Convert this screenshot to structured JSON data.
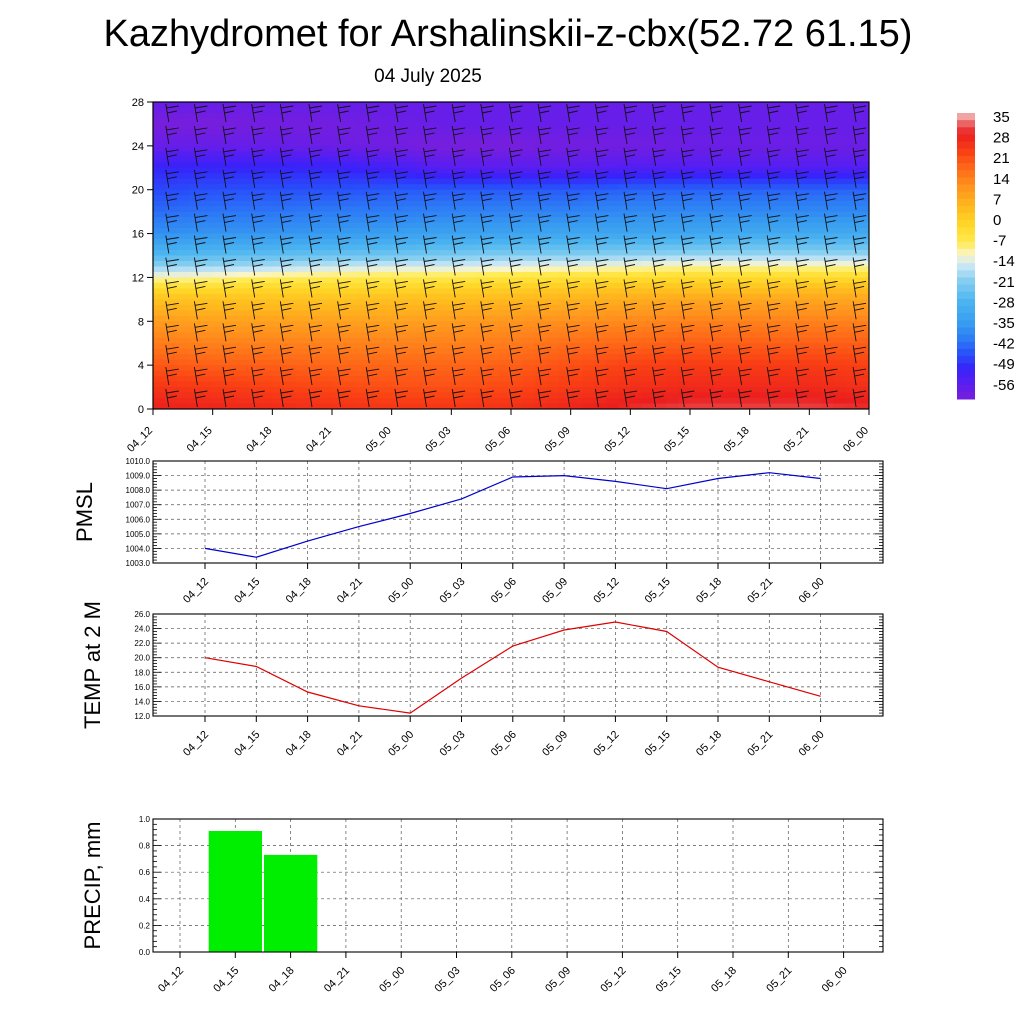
{
  "title": "Kazhydromet for Arshalinskii-z-cbx(52.72 61.15)",
  "subtitle": "04 July 2025",
  "time_labels": [
    "04_12",
    "04_15",
    "04_18",
    "04_21",
    "05_00",
    "05_03",
    "05_06",
    "05_09",
    "05_12",
    "05_15",
    "05_18",
    "05_21",
    "06_00"
  ],
  "colorbar": {
    "labels": [
      "35",
      "28",
      "21",
      "14",
      "7",
      "0",
      "-7",
      "-14",
      "-21",
      "-28",
      "-35",
      "-42",
      "-49",
      "-56"
    ]
  },
  "chart_data": [
    {
      "type": "heatmap",
      "title": "",
      "xlabel": "",
      "ylabel": "",
      "y_ticks": [
        0,
        4,
        8,
        12,
        16,
        20,
        24,
        28
      ],
      "ylim": [
        0,
        28
      ],
      "x": [
        "04_12",
        "04_15",
        "04_18",
        "04_21",
        "05_00",
        "05_03",
        "05_06",
        "05_09",
        "05_12",
        "05_15",
        "05_18",
        "05_21",
        "06_00"
      ],
      "vmin": -60,
      "vmax": 35,
      "levels": [
        {
          "z": 0,
          "values": [
            28,
            27,
            26,
            25,
            24,
            24,
            25,
            27,
            29,
            30,
            30,
            30,
            29
          ]
        },
        {
          "z": 2,
          "values": [
            24,
            23,
            22,
            21,
            20,
            20,
            21,
            23,
            25,
            26,
            26,
            26,
            25
          ]
        },
        {
          "z": 4,
          "values": [
            19,
            18,
            18,
            17,
            17,
            17,
            18,
            20,
            22,
            23,
            23,
            23,
            22
          ]
        },
        {
          "z": 6,
          "values": [
            14,
            13,
            13,
            13,
            13,
            13,
            14,
            16,
            17,
            18,
            18,
            18,
            18
          ]
        },
        {
          "z": 8,
          "values": [
            9,
            8,
            8,
            8,
            8,
            9,
            10,
            11,
            12,
            13,
            13,
            13,
            13
          ]
        },
        {
          "z": 10,
          "values": [
            2,
            2,
            2,
            2,
            3,
            3,
            4,
            5,
            6,
            7,
            7,
            7,
            7
          ]
        },
        {
          "z": 11,
          "values": [
            -3,
            -3,
            -2,
            -2,
            -2,
            -1,
            0,
            1,
            2,
            2,
            2,
            3,
            3
          ]
        },
        {
          "z": 12,
          "values": [
            -12,
            -11,
            -9,
            -8,
            -7,
            -7,
            -6,
            -5,
            -4,
            -3,
            -3,
            -3,
            -3
          ]
        },
        {
          "z": 13,
          "values": [
            -20,
            -19,
            -18,
            -16,
            -15,
            -15,
            -14,
            -13,
            -12,
            -11,
            -11,
            -11,
            -11
          ]
        },
        {
          "z": 14,
          "values": [
            -27,
            -26,
            -25,
            -24,
            -23,
            -22,
            -21,
            -21,
            -20,
            -19,
            -19,
            -19,
            -19
          ]
        },
        {
          "z": 16,
          "values": [
            -37,
            -36,
            -36,
            -35,
            -34,
            -33,
            -33,
            -32,
            -32,
            -32,
            -31,
            -31,
            -31
          ]
        },
        {
          "z": 18,
          "values": [
            -42,
            -41,
            -41,
            -40,
            -40,
            -39,
            -39,
            -39,
            -38,
            -38,
            -38,
            -38,
            -38
          ]
        },
        {
          "z": 20,
          "values": [
            -46,
            -45,
            -45,
            -45,
            -44,
            -44,
            -44,
            -44,
            -43,
            -43,
            -43,
            -43,
            -43
          ]
        },
        {
          "z": 22,
          "values": [
            -50,
            -50,
            -50,
            -50,
            -52,
            -55,
            -55,
            -55,
            -54,
            -54,
            -54,
            -54,
            -54
          ]
        },
        {
          "z": 24,
          "values": [
            -57,
            -57,
            -57,
            -58,
            -59,
            -60,
            -60,
            -59,
            -59,
            -58,
            -58,
            -58,
            -58
          ]
        },
        {
          "z": 26,
          "values": [
            -60,
            -60,
            -59,
            -59,
            -58,
            -57,
            -57,
            -57,
            -57,
            -57,
            -57,
            -57,
            -57
          ]
        },
        {
          "z": 28,
          "values": [
            -57,
            -57,
            -57,
            -57,
            -57,
            -57,
            -57,
            -57,
            -57,
            -57,
            -57,
            -57,
            -57
          ]
        }
      ]
    },
    {
      "type": "line",
      "title": "",
      "xlabel": "",
      "ylabel": "PMSL",
      "y_ticks": [
        "1003.0",
        "1004.0",
        "1005.0",
        "1006.0",
        "1007.0",
        "1008.0",
        "1009.0",
        "1010.0"
      ],
      "ylim": [
        1003,
        1010
      ],
      "x": [
        "04_12",
        "04_15",
        "04_18",
        "04_21",
        "05_00",
        "05_03",
        "05_06",
        "05_09",
        "05_12",
        "05_15",
        "05_18",
        "05_21",
        "06_00"
      ],
      "values": [
        1004.0,
        1003.4,
        1004.5,
        1005.5,
        1006.4,
        1007.4,
        1008.9,
        1009.0,
        1008.6,
        1008.1,
        1008.8,
        1009.2,
        1008.8
      ],
      "color": "#0000cc"
    },
    {
      "type": "line",
      "title": "",
      "xlabel": "",
      "ylabel": "TEMP at 2 M",
      "y_ticks": [
        "12.0",
        "14.0",
        "16.0",
        "18.0",
        "20.0",
        "22.0",
        "24.0",
        "26.0"
      ],
      "ylim": [
        12,
        26
      ],
      "x": [
        "04_12",
        "04_15",
        "04_18",
        "04_21",
        "05_00",
        "05_03",
        "05_06",
        "05_09",
        "05_12",
        "05_15",
        "05_18",
        "05_21",
        "06_00"
      ],
      "values": [
        20.0,
        18.8,
        15.3,
        13.4,
        12.4,
        17.2,
        21.6,
        23.8,
        24.9,
        23.6,
        18.7,
        16.7,
        14.7
      ],
      "color": "#dd0000"
    },
    {
      "type": "bar",
      "title": "",
      "xlabel": "",
      "ylabel": "PRECIP, mm",
      "y_ticks": [
        "0.0",
        "0.2",
        "0.4",
        "0.6",
        "0.8",
        "1.0"
      ],
      "ylim": [
        0,
        1
      ],
      "categories": [
        "04_12",
        "04_15",
        "04_18",
        "04_21",
        "05_00",
        "05_03",
        "05_06",
        "05_09",
        "05_12",
        "05_15",
        "05_18",
        "05_21",
        "06_00"
      ],
      "values": [
        0,
        0.91,
        0.73,
        0,
        0,
        0,
        0,
        0,
        0,
        0,
        0,
        0,
        0
      ],
      "color": "#00ee00"
    }
  ]
}
